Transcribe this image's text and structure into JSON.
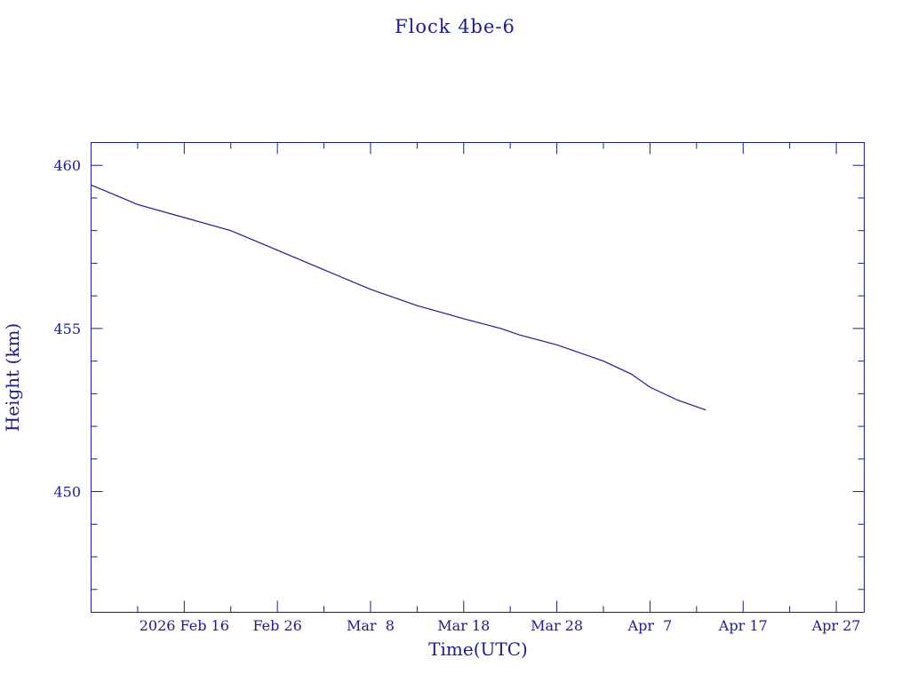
{
  "chart_data": {
    "type": "line",
    "title": "Flock 4be-6",
    "xlabel": "Time(UTC)",
    "ylabel": "Height (km)",
    "x_tick_labels": [
      "2026 Feb 16",
      "Feb 26",
      "Mar  8",
      "Mar 18",
      "Mar 28",
      "Apr  7",
      "Apr 17",
      "Apr 27"
    ],
    "x_tick_dates": [
      "2026-02-16",
      "2026-02-26",
      "2026-03-08",
      "2026-03-18",
      "2026-03-28",
      "2026-04-07",
      "2026-04-17",
      "2026-04-27"
    ],
    "y_tick_labels": [
      "450",
      "455",
      "460"
    ],
    "y_ticks": [
      450,
      455,
      460
    ],
    "xlim": [
      "2026-02-06",
      "2026-04-30"
    ],
    "ylim": [
      446.3,
      460.7
    ],
    "grid": false,
    "series": [
      {
        "x": [
          "2026-02-06",
          "2026-02-11",
          "2026-02-16",
          "2026-02-21",
          "2026-02-26",
          "2026-03-03",
          "2026-03-08",
          "2026-03-13",
          "2026-03-18",
          "2026-03-22",
          "2026-03-24",
          "2026-03-28",
          "2026-04-02",
          "2026-04-05",
          "2026-04-07",
          "2026-04-10",
          "2026-04-13"
        ],
        "y": [
          459.4,
          458.8,
          458.4,
          458.0,
          457.4,
          456.8,
          456.2,
          455.7,
          455.3,
          455.0,
          454.8,
          454.5,
          454.0,
          453.6,
          453.2,
          452.8,
          452.5
        ]
      }
    ]
  }
}
